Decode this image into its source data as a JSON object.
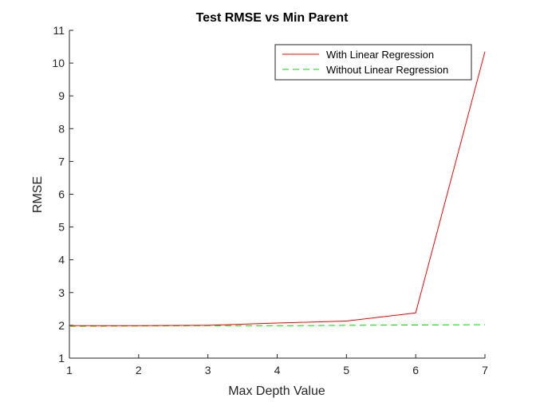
{
  "chart_data": {
    "type": "line",
    "title": "Test RMSE vs Min Parent",
    "xlabel": "Max Depth Value",
    "ylabel": "RMSE",
    "xlim": [
      1,
      7
    ],
    "ylim": [
      1,
      11
    ],
    "x_ticks": [
      "1",
      "2",
      "3",
      "4",
      "5",
      "6",
      "7"
    ],
    "y_ticks": [
      "1",
      "2",
      "3",
      "4",
      "5",
      "6",
      "7",
      "8",
      "9",
      "10",
      "11"
    ],
    "grid": false,
    "legend_position": "top-right",
    "x": [
      1,
      2,
      3,
      4,
      5,
      6,
      7
    ],
    "series": [
      {
        "name": "With Linear Regression",
        "color": "#ff0000",
        "style": "solid",
        "values": [
          1.99,
          1.99,
          2.0,
          2.07,
          2.13,
          2.38,
          10.35
        ]
      },
      {
        "name": "Without Linear Regression",
        "color": "#00dd00",
        "style": "dashed",
        "values": [
          1.97,
          1.98,
          1.99,
          1.99,
          2.0,
          2.01,
          2.02
        ]
      }
    ]
  }
}
